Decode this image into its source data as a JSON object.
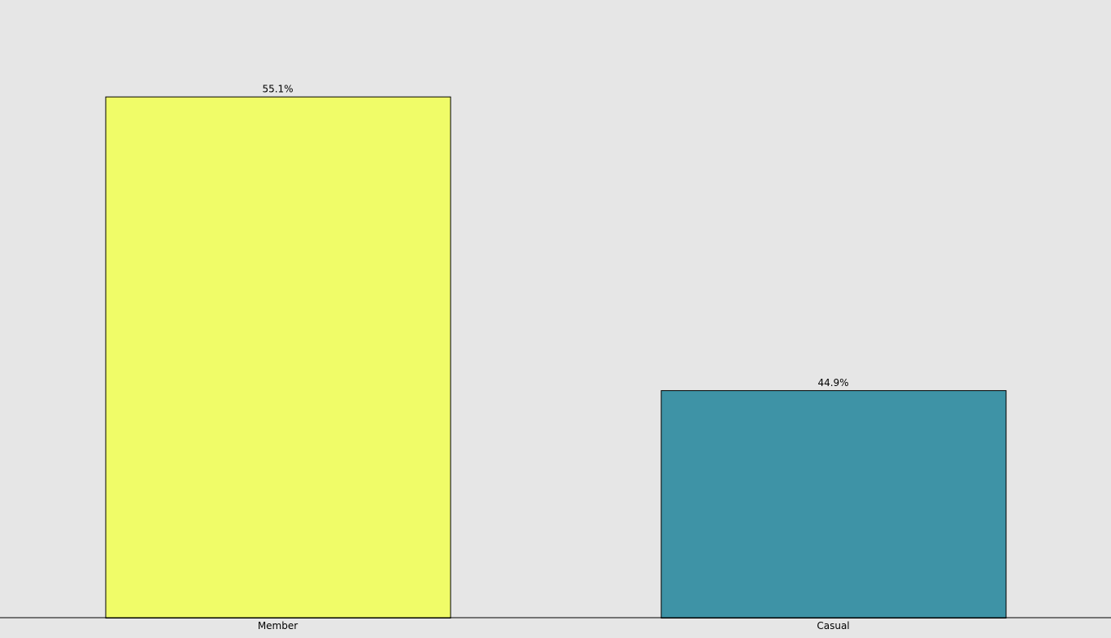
{
  "chart_data": {
    "type": "bar",
    "categories": [
      "Member",
      "Casual"
    ],
    "values": [
      55.1,
      44.9
    ],
    "value_labels": [
      "55.1%",
      "44.9%"
    ],
    "colors": [
      "#f0fc68",
      "#3e93a6"
    ],
    "background": "#e6e6e6",
    "ylim": [
      37,
      58
    ],
    "grid": false,
    "legend": "none"
  }
}
